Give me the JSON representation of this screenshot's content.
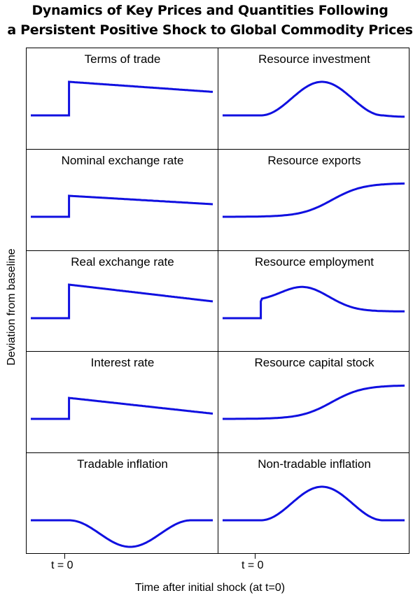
{
  "title_line1": "Dynamics of Key Prices and Quantities Following",
  "title_line2": "a Persistent Positive Shock to Global Commodity Prices",
  "ylabel": "Deviation from baseline",
  "xlabel": "Time after initial shock (at t=0)",
  "tick_label": "t = 0",
  "colors": {
    "line": "#1010e0",
    "grid": "#000000"
  },
  "chart_data": {
    "type": "line",
    "layout_grid": "5 rows x 2 columns of panels",
    "x_axis": "time after initial shock, shock at t = 0",
    "y_axis": "deviation from baseline (no numeric scale shown)",
    "panels": [
      {
        "name": "Terms of trade",
        "column": "left",
        "row": 1,
        "shape": "jump at t=0 then gradual linear decline",
        "pre_shock": 0,
        "jump_to": 1.0,
        "end": 0.7
      },
      {
        "name": "Resource investment",
        "column": "right",
        "row": 1,
        "shape": "hump: rises after t=0, peaks, falls slightly below baseline",
        "pre_shock": 0,
        "peak": 1.0,
        "end": 0.0
      },
      {
        "name": "Nominal exchange rate",
        "column": "left",
        "row": 2,
        "shape": "jump at t=0 then gradual linear decline",
        "pre_shock": 0,
        "jump_to": 1.0,
        "end": 0.6
      },
      {
        "name": "Resource exports",
        "column": "right",
        "row": 2,
        "shape": "flat then S-shaped rise to new plateau",
        "pre_shock": 0,
        "end": 1.0
      },
      {
        "name": "Real exchange rate",
        "column": "left",
        "row": 3,
        "shape": "jump at t=0 then gradual linear decline",
        "pre_shock": 0,
        "jump_to": 1.0,
        "end": 0.5
      },
      {
        "name": "Resource employment",
        "column": "right",
        "row": 3,
        "shape": "small jump at t=0, hump, then returns to near baseline",
        "pre_shock": 0,
        "jump_to": 0.5,
        "peak": 1.0,
        "end": 0.2
      },
      {
        "name": "Interest rate",
        "column": "left",
        "row": 4,
        "shape": "jump at t=0 then gradual linear decline",
        "pre_shock": 0,
        "jump_to": 1.0,
        "end": 0.25
      },
      {
        "name": "Resource capital stock",
        "column": "right",
        "row": 4,
        "shape": "flat then S-shaped rise to new plateau",
        "pre_shock": 0,
        "end": 1.0
      },
      {
        "name": "Tradable inflation",
        "column": "left",
        "row": 5,
        "shape": "trough: falls after t=0 then returns to baseline",
        "pre_shock": 0,
        "trough": -1.0,
        "end": 0.0
      },
      {
        "name": "Non-tradable inflation",
        "column": "right",
        "row": 5,
        "shape": "hump: rises after t=0 then returns to baseline",
        "pre_shock": 0,
        "peak": 1.0,
        "end": 0.0
      }
    ]
  }
}
